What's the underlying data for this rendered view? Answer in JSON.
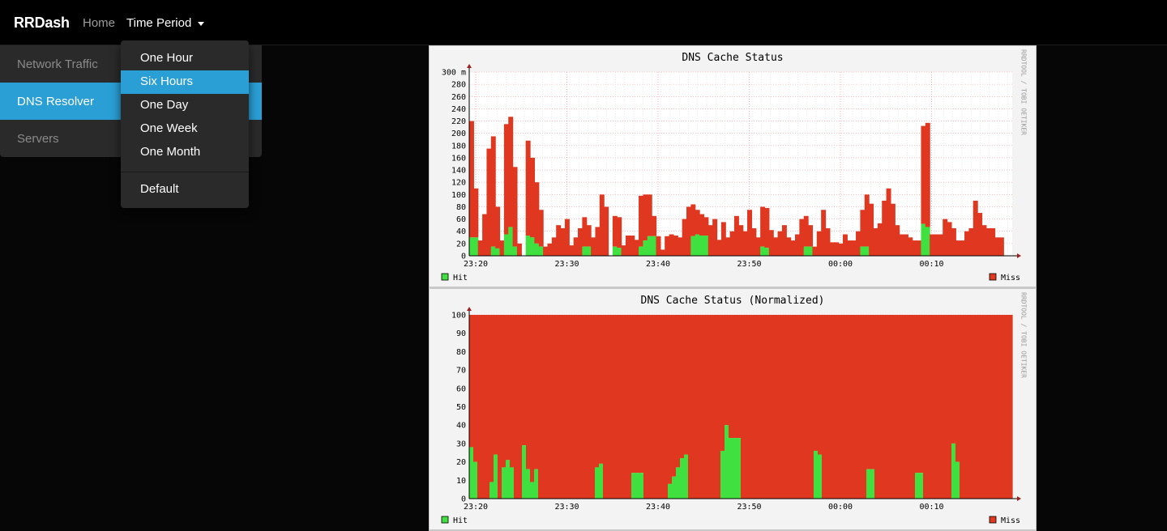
{
  "navbar": {
    "brand": "RRDash",
    "home": "Home",
    "time_period": "Time Period"
  },
  "sidebar": {
    "items": [
      {
        "label": "Network Traffic"
      },
      {
        "label": "DNS Resolver",
        "active": true
      },
      {
        "label": "Servers"
      }
    ]
  },
  "dropdown": {
    "items": [
      {
        "label": "One Hour"
      },
      {
        "label": "Six Hours",
        "active": true
      },
      {
        "label": "One Day"
      },
      {
        "label": "One Week"
      },
      {
        "label": "One Month"
      }
    ],
    "default_label": "Default"
  },
  "colors": {
    "hit": "#40e040",
    "miss": "#e03820",
    "accent": "#2a9fd6"
  },
  "chart_data": [
    {
      "type": "area",
      "stacked": true,
      "title": "DNS Cache Status",
      "watermark": "RRDTOOL / TOBI OETIKER",
      "x_ticks": [
        "23:20",
        "23:30",
        "23:40",
        "23:50",
        "00:00",
        "00:10"
      ],
      "y_ticks": [
        "0",
        "20",
        "40",
        "60",
        "80",
        "100",
        "120",
        "140",
        "160",
        "180",
        "200",
        "220",
        "240",
        "260",
        "280",
        "300 m"
      ],
      "ylim": [
        0,
        0.3
      ],
      "grid": true,
      "legend_position": "bottom",
      "legend": [
        {
          "name": "Hit"
        },
        {
          "name": "Miss"
        }
      ],
      "series": [
        {
          "name": "Hit",
          "values": [
            0.03,
            0.03,
            0,
            0,
            0,
            0.015,
            0.012,
            0,
            0.035,
            0.047,
            0.015,
            0,
            0,
            0.033,
            0.03,
            0.02,
            0.015,
            0,
            0,
            0,
            0,
            0,
            0,
            0,
            0,
            0,
            0.015,
            0.015,
            0,
            0,
            0,
            0,
            0,
            0.015,
            0.013,
            0,
            0,
            0,
            0,
            0.015,
            0.025,
            0.032,
            0.032,
            0,
            0,
            0,
            0,
            0,
            0,
            0,
            0,
            0.032,
            0.035,
            0.033,
            0.033,
            0,
            0,
            0,
            0,
            0,
            0,
            0,
            0,
            0,
            0,
            0,
            0,
            0.015,
            0.013,
            0,
            0,
            0,
            0,
            0,
            0,
            0,
            0,
            0.015,
            0.015,
            0,
            0,
            0,
            0,
            0,
            0,
            0,
            0,
            0,
            0,
            0,
            0.015,
            0.015,
            0,
            0,
            0,
            0,
            0,
            0,
            0,
            0,
            0,
            0,
            0,
            0,
            0.052,
            0.047,
            0,
            0,
            0,
            0,
            0,
            0,
            0,
            0,
            0,
            0,
            0,
            0,
            0,
            0,
            0,
            0,
            0
          ]
        },
        {
          "name": "Miss",
          "values": [
            0.19,
            0.08,
            0.025,
            0.068,
            0.175,
            0.18,
            0.068,
            0.025,
            0.18,
            0.18,
            0.13,
            0.02,
            0,
            0.155,
            0.13,
            0.1,
            0.06,
            0.015,
            0.02,
            0.03,
            0.05,
            0.045,
            0.06,
            0.017,
            0.03,
            0.045,
            0.048,
            0.035,
            0.03,
            0.047,
            0.1,
            0.08,
            0,
            0.05,
            0.05,
            0.017,
            0.033,
            0.033,
            0.026,
            0.083,
            0.075,
            0.068,
            0.033,
            0.032,
            0.01,
            0.032,
            0.035,
            0.033,
            0.03,
            0.06,
            0.08,
            0.052,
            0.04,
            0.035,
            0.03,
            0.05,
            0.06,
            0.026,
            0.055,
            0.03,
            0.04,
            0.065,
            0.05,
            0.04,
            0.075,
            0.045,
            0.03,
            0.065,
            0.065,
            0.042,
            0.03,
            0.04,
            0.05,
            0.03,
            0.025,
            0.035,
            0.06,
            0.05,
            0.035,
            0.015,
            0.04,
            0.075,
            0.045,
            0.022,
            0.022,
            0.02,
            0.035,
            0.025,
            0.025,
            0.04,
            0.06,
            0.085,
            0.085,
            0.045,
            0.053,
            0.09,
            0.11,
            0.085,
            0.05,
            0.035,
            0.035,
            0.03,
            0.025,
            0.025,
            0.16,
            0.17,
            0.035,
            0.035,
            0.035,
            0.06,
            0.055,
            0.045,
            0.025,
            0.025,
            0.04,
            0.045,
            0.09,
            0.07,
            0.05,
            0.045,
            0.045,
            0.03,
            0.03,
            0.045,
            0.066
          ]
        }
      ]
    },
    {
      "type": "area",
      "stacked": true,
      "title": "DNS Cache Status (Normalized)",
      "watermark": "RRDTOOL / TOBI OETIKER",
      "x_ticks": [
        "23:20",
        "23:30",
        "23:40",
        "23:50",
        "00:00",
        "00:10"
      ],
      "y_ticks": [
        "0",
        "10",
        "20",
        "30",
        "40",
        "50",
        "60",
        "70",
        "80",
        "90",
        "100"
      ],
      "ylim": [
        0,
        100
      ],
      "grid": true,
      "legend_position": "bottom",
      "legend": [
        {
          "name": "Hit"
        },
        {
          "name": "Miss"
        }
      ],
      "series": [
        {
          "name": "Hit",
          "values": [
            28,
            20,
            0,
            0,
            0,
            9,
            24,
            0,
            17,
            21,
            17,
            0,
            0,
            29,
            16,
            9,
            16,
            0,
            0,
            0,
            0,
            0,
            0,
            0,
            0,
            0,
            0,
            0,
            0,
            0,
            0,
            17,
            19,
            0,
            0,
            0,
            0,
            0,
            0,
            0,
            14,
            14,
            14,
            0,
            0,
            0,
            0,
            0,
            0,
            8,
            12,
            17,
            22,
            24,
            0,
            0,
            0,
            0,
            0,
            0,
            0,
            0,
            26,
            40,
            33,
            33,
            33,
            0,
            0,
            0,
            0,
            0,
            0,
            0,
            0,
            0,
            0,
            0,
            0,
            0,
            0,
            0,
            0,
            0,
            0,
            26,
            24,
            0,
            0,
            0,
            0,
            0,
            0,
            0,
            0,
            0,
            0,
            0,
            16,
            16,
            0,
            0,
            0,
            0,
            0,
            0,
            0,
            0,
            0,
            0,
            14,
            14,
            0,
            0,
            0,
            0,
            0,
            0,
            0,
            30,
            20,
            0,
            0,
            0,
            0,
            0,
            0,
            0,
            0,
            0,
            0,
            0,
            0,
            0
          ]
        },
        {
          "name": "Miss",
          "values": [
            72,
            80,
            100,
            100,
            100,
            91,
            76,
            100,
            83,
            79,
            83,
            100,
            100,
            71,
            84,
            91,
            84,
            100,
            100,
            100,
            100,
            100,
            100,
            100,
            100,
            100,
            100,
            100,
            100,
            100,
            100,
            83,
            81,
            100,
            100,
            100,
            100,
            100,
            100,
            100,
            86,
            86,
            86,
            100,
            100,
            100,
            100,
            100,
            100,
            92,
            88,
            83,
            78,
            76,
            100,
            100,
            100,
            100,
            100,
            100,
            100,
            100,
            74,
            60,
            67,
            67,
            67,
            100,
            100,
            100,
            100,
            100,
            100,
            100,
            100,
            100,
            100,
            100,
            100,
            100,
            100,
            100,
            100,
            100,
            100,
            74,
            76,
            100,
            100,
            100,
            100,
            100,
            100,
            100,
            100,
            100,
            100,
            100,
            84,
            84,
            100,
            100,
            100,
            100,
            100,
            100,
            100,
            100,
            100,
            100,
            86,
            86,
            100,
            100,
            100,
            100,
            100,
            100,
            100,
            70,
            80,
            100,
            100,
            100,
            100,
            100,
            100,
            100,
            100,
            100,
            100,
            100,
            100,
            100
          ]
        }
      ]
    }
  ]
}
